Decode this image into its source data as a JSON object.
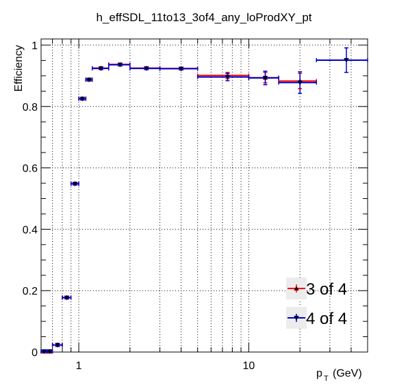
{
  "chart_data": {
    "type": "scatter",
    "title": "h_effSDL_11to13_3of4_any_loProdXY_pt",
    "xlabel_main": "p",
    "xlabel_sub": "T",
    "xlabel_unit": "(GeV)",
    "ylabel": "Efficiency",
    "xscale": "log",
    "xlim": [
      0.6,
      50
    ],
    "ylim": [
      0,
      1.02
    ],
    "grid": true,
    "legend_position": "bottom-right",
    "x_ticks": [
      {
        "value": 1,
        "label": "1"
      },
      {
        "value": 10,
        "label": "10"
      }
    ],
    "y_ticks": [
      {
        "value": 0,
        "label": "0"
      },
      {
        "value": 0.2,
        "label": "0.2"
      },
      {
        "value": 0.4,
        "label": "0.4"
      },
      {
        "value": 0.6,
        "label": "0.6"
      },
      {
        "value": 0.8,
        "label": "0.8"
      },
      {
        "value": 1,
        "label": "1"
      }
    ],
    "series": [
      {
        "name": "3 of 4",
        "color": "#ff0000",
        "marker": "triangle-up",
        "points": [
          {
            "x": 0.625,
            "xlo": 0.6,
            "xhi": 0.65,
            "y": 0.002,
            "err": 0.002
          },
          {
            "x": 0.675,
            "xlo": 0.65,
            "xhi": 0.7,
            "y": 0.002,
            "err": 0.002
          },
          {
            "x": 0.75,
            "xlo": 0.7,
            "xhi": 0.8,
            "y": 0.023,
            "err": 0.004
          },
          {
            "x": 0.85,
            "xlo": 0.8,
            "xhi": 0.9,
            "y": 0.178,
            "err": 0.004
          },
          {
            "x": 0.95,
            "xlo": 0.9,
            "xhi": 1.0,
            "y": 0.549,
            "err": 0.004
          },
          {
            "x": 1.05,
            "xlo": 1.0,
            "xhi": 1.1,
            "y": 0.826,
            "err": 0.004
          },
          {
            "x": 1.15,
            "xlo": 1.1,
            "xhi": 1.2,
            "y": 0.888,
            "err": 0.003
          },
          {
            "x": 1.35,
            "xlo": 1.2,
            "xhi": 1.5,
            "y": 0.925,
            "err": 0.003
          },
          {
            "x": 1.75,
            "xlo": 1.5,
            "xhi": 2.0,
            "y": 0.937,
            "err": 0.003
          },
          {
            "x": 2.5,
            "xlo": 2.0,
            "xhi": 3.0,
            "y": 0.925,
            "err": 0.003
          },
          {
            "x": 4.0,
            "xlo": 3.0,
            "xhi": 5.0,
            "y": 0.924,
            "err": 0.004
          },
          {
            "x": 7.5,
            "xlo": 5.0,
            "xhi": 10.0,
            "y": 0.901,
            "err": 0.01
          },
          {
            "x": 12.5,
            "xlo": 10.0,
            "xhi": 15.0,
            "y": 0.894,
            "err": 0.017
          },
          {
            "x": 20.0,
            "xlo": 15.0,
            "xhi": 25.0,
            "y": 0.883,
            "err": 0.025
          }
        ]
      },
      {
        "name": "4 of 4",
        "color": "#0000cc",
        "marker": "triangle-down",
        "points": [
          {
            "x": 0.625,
            "xlo": 0.6,
            "xhi": 0.65,
            "y": 0.002,
            "err": 0.002
          },
          {
            "x": 0.675,
            "xlo": 0.65,
            "xhi": 0.7,
            "y": 0.002,
            "err": 0.002
          },
          {
            "x": 0.75,
            "xlo": 0.7,
            "xhi": 0.8,
            "y": 0.023,
            "err": 0.004
          },
          {
            "x": 0.85,
            "xlo": 0.8,
            "xhi": 0.9,
            "y": 0.177,
            "err": 0.004
          },
          {
            "x": 0.95,
            "xlo": 0.9,
            "xhi": 1.0,
            "y": 0.548,
            "err": 0.004
          },
          {
            "x": 1.05,
            "xlo": 1.0,
            "xhi": 1.1,
            "y": 0.825,
            "err": 0.004
          },
          {
            "x": 1.15,
            "xlo": 1.1,
            "xhi": 1.2,
            "y": 0.887,
            "err": 0.003
          },
          {
            "x": 1.35,
            "xlo": 1.2,
            "xhi": 1.5,
            "y": 0.924,
            "err": 0.003
          },
          {
            "x": 1.75,
            "xlo": 1.5,
            "xhi": 2.0,
            "y": 0.936,
            "err": 0.003
          },
          {
            "x": 2.5,
            "xlo": 2.0,
            "xhi": 3.0,
            "y": 0.924,
            "err": 0.003
          },
          {
            "x": 4.0,
            "xlo": 3.0,
            "xhi": 5.0,
            "y": 0.923,
            "err": 0.004
          },
          {
            "x": 7.5,
            "xlo": 5.0,
            "xhi": 10.0,
            "y": 0.896,
            "err": 0.012
          },
          {
            "x": 12.5,
            "xlo": 10.0,
            "xhi": 15.0,
            "y": 0.893,
            "err": 0.022
          },
          {
            "x": 20.0,
            "xlo": 15.0,
            "xhi": 25.0,
            "y": 0.878,
            "err": 0.035
          },
          {
            "x": 37.5,
            "xlo": 25.0,
            "xhi": 50.0,
            "y": 0.951,
            "err": 0.04
          }
        ]
      }
    ]
  }
}
